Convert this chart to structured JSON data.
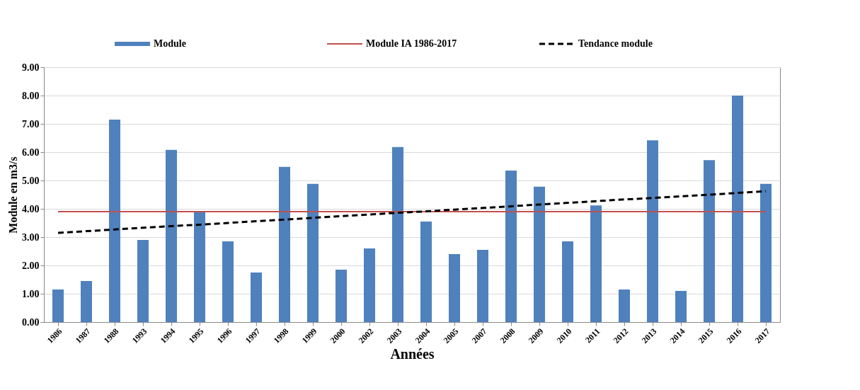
{
  "chart_data": {
    "type": "bar",
    "xlabel": "Années",
    "ylabel": "Module en m3/s",
    "categories": [
      "1986",
      "1987",
      "1988",
      "1993",
      "1994",
      "1995",
      "1996",
      "1997",
      "1998",
      "1999",
      "2000",
      "2002",
      "2003",
      "2004",
      "2005",
      "2007",
      "2008",
      "2009",
      "2010",
      "2011",
      "2012",
      "2013",
      "2014",
      "2015",
      "2016",
      "2017"
    ],
    "series": [
      {
        "name": "Module",
        "color": "#4f81bd",
        "values": [
          1.15,
          1.45,
          7.15,
          2.9,
          6.08,
          3.88,
          2.85,
          1.75,
          5.48,
          4.88,
          1.85,
          2.6,
          6.18,
          3.55,
          2.4,
          2.55,
          5.35,
          4.78,
          2.85,
          4.12,
          1.15,
          6.42,
          1.1,
          5.72,
          8.0,
          4.88
        ]
      },
      {
        "name": "Tendance module",
        "type": "line",
        "color": "#000000",
        "line_style": "dashed",
        "values": [
          3.15,
          3.21,
          3.27,
          3.33,
          3.39,
          3.44,
          3.5,
          3.56,
          3.62,
          3.68,
          3.74,
          3.8,
          3.86,
          3.91,
          3.97,
          4.03,
          4.09,
          4.15,
          4.21,
          4.27,
          4.33,
          4.38,
          4.44,
          4.5,
          4.56,
          4.62
        ]
      }
    ],
    "ref_lines": [
      {
        "axis": "y",
        "value": 3.9,
        "label": "Module IA 1986-2017",
        "color": "#c0504d"
      }
    ],
    "ylim": [
      0,
      9
    ],
    "yticks": [
      {
        "value": 0,
        "label": "0.00"
      },
      {
        "value": 1,
        "label": "1.00"
      },
      {
        "value": 2,
        "label": "2.00"
      },
      {
        "value": 3,
        "label": "3.00"
      },
      {
        "value": 4,
        "label": "4.00"
      },
      {
        "value": 5,
        "label": "5.00"
      },
      {
        "value": 6,
        "label": "6.00"
      },
      {
        "value": 7,
        "label": "7.00"
      },
      {
        "value": 8,
        "label": "8.00"
      },
      {
        "value": 9,
        "label": "9.00"
      }
    ],
    "grid": "y",
    "legend": "top"
  }
}
